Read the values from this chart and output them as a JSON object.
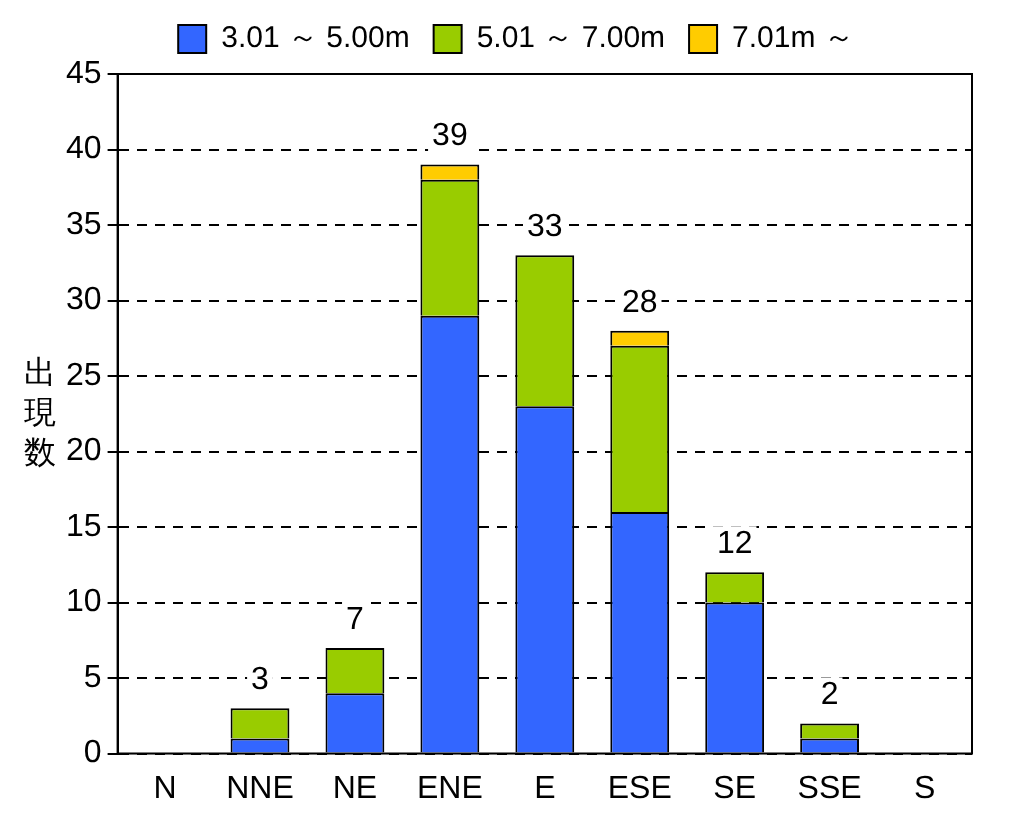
{
  "chart_data": {
    "type": "bar",
    "stacked": true,
    "ylabel": "出現数",
    "categories": [
      "N",
      "NNE",
      "NE",
      "ENE",
      "E",
      "ESE",
      "SE",
      "SSE",
      "S"
    ],
    "series": [
      {
        "name": "3.01 ～ 5.00m",
        "color": "#3366ff",
        "values": [
          0,
          1,
          4,
          29,
          23,
          16,
          10,
          1,
          0
        ]
      },
      {
        "name": "5.01 ～ 7.00m",
        "color": "#99cc00",
        "values": [
          0,
          2,
          3,
          9,
          10,
          11,
          2,
          1,
          0
        ]
      },
      {
        "name": "7.01m ～",
        "color": "#ffcc00",
        "values": [
          0,
          0,
          0,
          1,
          0,
          1,
          0,
          0,
          0
        ]
      }
    ],
    "totals": [
      null,
      "3",
      "7",
      "39",
      "33",
      "28",
      "12",
      "2",
      null
    ],
    "ylim": [
      0,
      45
    ],
    "yticks": [
      0,
      5,
      10,
      15,
      20,
      25,
      30,
      35,
      40,
      45
    ],
    "grid": "y",
    "legend": "top"
  }
}
